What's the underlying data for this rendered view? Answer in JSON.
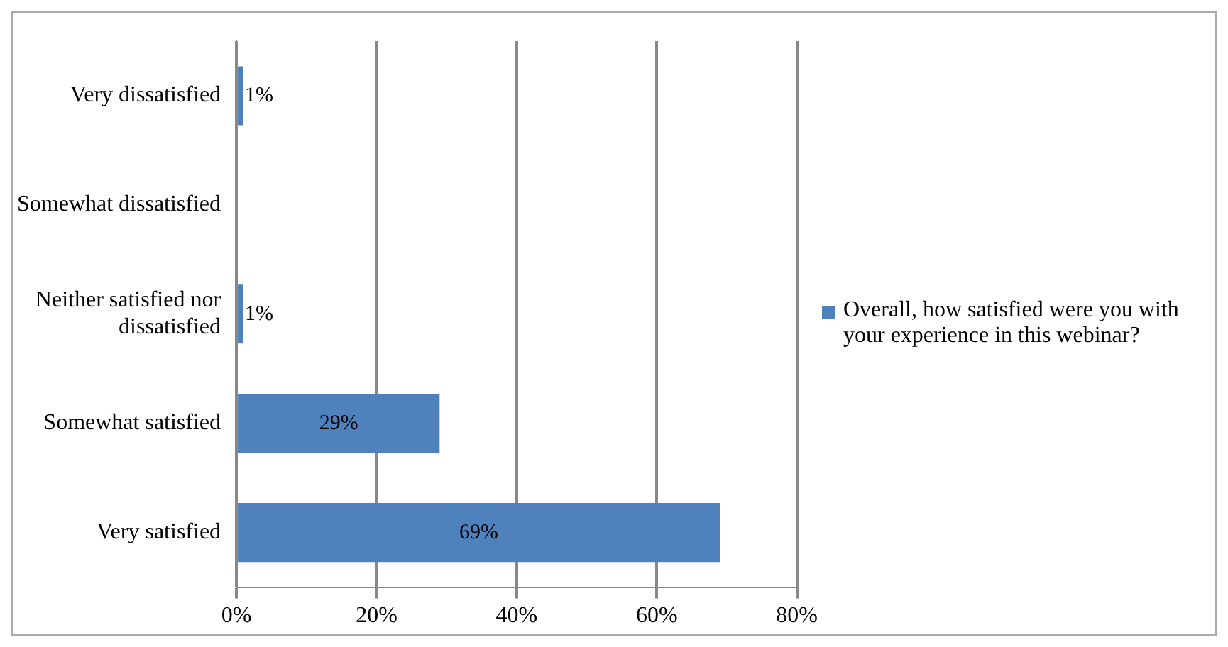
{
  "chart_data": {
    "type": "bar",
    "orientation": "horizontal",
    "categories": [
      "Very dissatisfied",
      "Somewhat dissatisfied",
      "Neither satisfied nor dissatisfied",
      "Somewhat satisfied",
      "Very satisfied"
    ],
    "series": [
      {
        "name": "Overall, how satisfied were you with your experience in this webinar?",
        "color": "#4f81bd",
        "values": [
          1,
          0,
          1,
          29,
          69
        ],
        "value_labels": [
          "1%",
          null,
          "1%",
          "29%",
          "69%"
        ]
      }
    ],
    "xlim": [
      0,
      80
    ],
    "xticks": [
      {
        "value": 0,
        "label": "0%"
      },
      {
        "value": 20,
        "label": "20%"
      },
      {
        "value": 40,
        "label": "40%"
      },
      {
        "value": 60,
        "label": "60%"
      },
      {
        "value": 80,
        "label": "80%"
      }
    ],
    "grid": "x",
    "legend": "right"
  }
}
